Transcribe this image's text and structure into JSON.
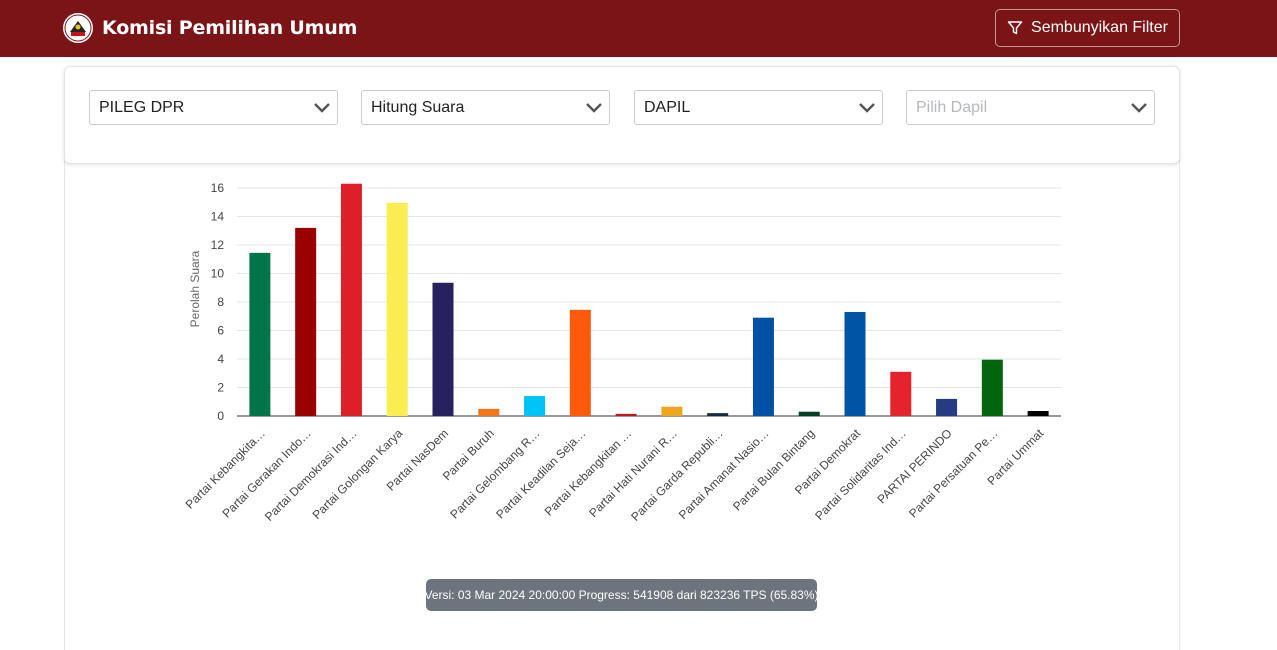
{
  "header": {
    "title": "Komisi Pemilihan Umum",
    "filter_button_label": "Sembunyikan Filter",
    "bg_color": "#7b1416"
  },
  "filters": [
    {
      "value": "PILEG DPR",
      "placeholder": false
    },
    {
      "value": "Hitung Suara",
      "placeholder": false
    },
    {
      "value": "DAPIL",
      "placeholder": false
    },
    {
      "value": "Pilih Dapil",
      "placeholder": true
    }
  ],
  "chart_data": {
    "type": "bar",
    "title": "",
    "xlabel": "",
    "ylabel": "Perolah Suara",
    "ylim": [
      0,
      16
    ],
    "yticks": [
      0,
      2,
      4,
      6,
      8,
      10,
      12,
      14,
      16
    ],
    "grid": true,
    "categories": [
      "Partai Kebangkita…",
      "Partai Gerakan Indo…",
      "Partai Demokrasi Ind…",
      "Partai Golongan Karya",
      "Partai NasDem",
      "Partai Buruh",
      "Partai Gelombang R…",
      "Partai Keadilan Seja…",
      "Partai Kebangkitan …",
      "Partai Hati Nurani R…",
      "Partai Garda Republi…",
      "Partai Amanat Nasio…",
      "Partai Bulan Bintang",
      "Partai Demokrat",
      "Partai Solidaritas Ind…",
      "PARTAI PERINDO",
      "Partai Persatuan Pe…",
      "Partai Ummat"
    ],
    "values": [
      11.45,
      13.2,
      16.3,
      14.95,
      9.35,
      0.5,
      1.4,
      7.45,
      0.15,
      0.65,
      0.2,
      6.9,
      0.3,
      7.3,
      3.1,
      1.2,
      3.95,
      0.35
    ],
    "colors": [
      "#00754a",
      "#9b0000",
      "#dd2028",
      "#f9ed50",
      "#27215f",
      "#f27618",
      "#00c3f5",
      "#ff5a0c",
      "#c81414",
      "#f0a51e",
      "#162a40",
      "#0051a6",
      "#003f20",
      "#0054a6",
      "#e4232c",
      "#253c84",
      "#00650d",
      "#000000"
    ]
  },
  "footer": {
    "version_text": "Versi: 03 Mar 2024 20:00:00 Progress: 541908 dari 823236 TPS (65.83%)"
  }
}
